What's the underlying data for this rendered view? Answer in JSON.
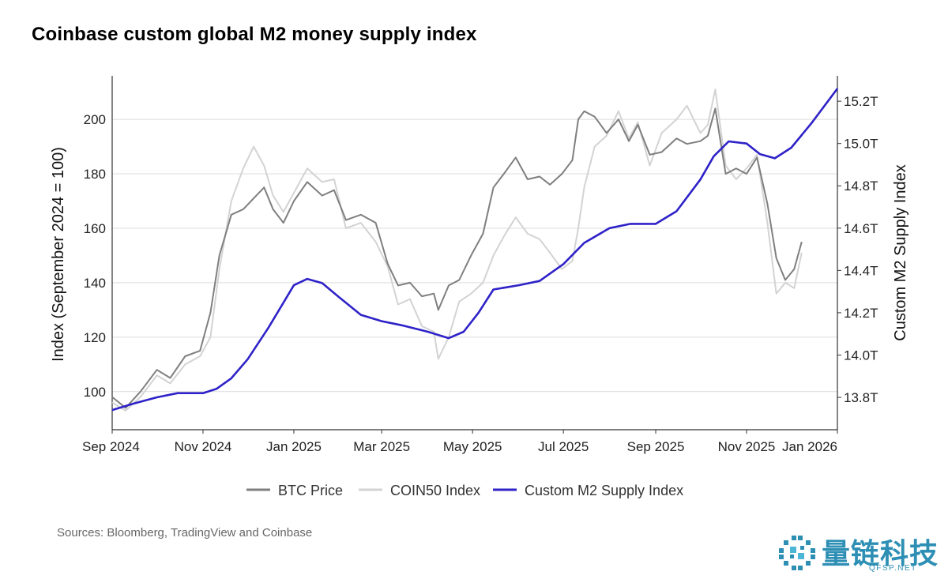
{
  "colors": {
    "btc": "#7f7f7f",
    "coin50": "#d3d3d3",
    "m2": "#2e22c8",
    "grid": "#dcdcdc",
    "axis": "#333333",
    "watermark": "#2e8fb5"
  },
  "source": "Sources: Bloomberg, TradingView and Coinbase",
  "watermark": {
    "name": "量链科技",
    "domain": "QFSP.NET",
    "icon": "pixel-circle-logo-icon"
  },
  "chart_data": {
    "type": "line",
    "title": "Coinbase custom global M2 money supply index",
    "ylabel": "Index (September 2024 = 100)",
    "y2label": "Custom M2 Supply Index",
    "x_ticks": [
      "Sep 2024",
      "Nov 2024",
      "Jan 2025",
      "Mar 2025",
      "May 2025",
      "Jul 2025",
      "Sep 2025",
      "Nov 2025",
      "Jan 2026"
    ],
    "x_tick_dates": [
      "2024-09-01",
      "2024-11-01",
      "2025-01-01",
      "2025-03-01",
      "2025-05-01",
      "2025-07-01",
      "2025-09-01",
      "2025-11-01",
      "2026-01-01"
    ],
    "xlim": [
      "2024-09-01",
      "2026-01-01"
    ],
    "ylim": [
      86,
      216
    ],
    "y_ticks": [
      100,
      120,
      140,
      160,
      180,
      200
    ],
    "y2lim": [
      13.647,
      15.32
    ],
    "y2_ticks": [
      13.8,
      14.0,
      14.2,
      14.4,
      14.6,
      14.8,
      15.0,
      15.2
    ],
    "y2_tick_labels": [
      "13.8T",
      "14.0T",
      "14.2T",
      "14.4T",
      "14.6T",
      "14.8T",
      "15.0T",
      "15.2T"
    ],
    "grid": true,
    "legend_position": "bottom-center",
    "series": [
      {
        "name": "BTC Price",
        "axis": "left",
        "x": [
          "2024-09-01",
          "2024-09-10",
          "2024-09-20",
          "2024-10-01",
          "2024-10-10",
          "2024-10-20",
          "2024-10-30",
          "2024-11-06",
          "2024-11-12",
          "2024-11-20",
          "2024-11-28",
          "2024-12-05",
          "2024-12-12",
          "2024-12-18",
          "2024-12-25",
          "2025-01-01",
          "2025-01-10",
          "2025-01-20",
          "2025-01-28",
          "2025-02-05",
          "2025-02-15",
          "2025-02-25",
          "2025-03-05",
          "2025-03-12",
          "2025-03-20",
          "2025-03-28",
          "2025-04-05",
          "2025-04-08",
          "2025-04-15",
          "2025-04-22",
          "2025-04-30",
          "2025-05-08",
          "2025-05-15",
          "2025-05-22",
          "2025-05-30",
          "2025-06-07",
          "2025-06-15",
          "2025-06-22",
          "2025-06-30",
          "2025-07-07",
          "2025-07-11",
          "2025-07-15",
          "2025-07-22",
          "2025-07-30",
          "2025-08-07",
          "2025-08-14",
          "2025-08-20",
          "2025-08-28",
          "2025-09-05",
          "2025-09-15",
          "2025-09-22",
          "2025-10-01",
          "2025-10-06",
          "2025-10-11",
          "2025-10-18",
          "2025-10-25",
          "2025-11-01",
          "2025-11-08",
          "2025-11-15",
          "2025-11-21",
          "2025-11-27",
          "2025-12-03",
          "2025-12-08"
        ],
        "y": [
          98,
          94,
          100,
          108,
          105,
          113,
          115,
          129,
          150,
          165,
          167,
          171,
          175,
          167,
          162,
          170,
          177,
          172,
          174,
          163,
          165,
          162,
          147,
          139,
          140,
          135,
          136,
          130,
          139,
          141,
          150,
          158,
          175,
          180,
          186,
          178,
          179,
          176,
          180,
          185,
          200,
          203,
          201,
          195,
          200,
          192,
          198,
          187,
          188,
          193,
          191,
          192,
          194,
          204,
          180,
          182,
          180,
          186,
          169,
          149,
          141,
          145,
          155
        ]
      },
      {
        "name": "COIN50 Index",
        "axis": "left",
        "x": [
          "2024-09-01",
          "2024-09-10",
          "2024-09-20",
          "2024-10-01",
          "2024-10-10",
          "2024-10-20",
          "2024-10-30",
          "2024-11-06",
          "2024-11-12",
          "2024-11-20",
          "2024-11-28",
          "2024-12-05",
          "2024-12-12",
          "2024-12-18",
          "2024-12-25",
          "2025-01-01",
          "2025-01-10",
          "2025-01-20",
          "2025-01-28",
          "2025-02-05",
          "2025-02-15",
          "2025-02-25",
          "2025-03-05",
          "2025-03-12",
          "2025-03-20",
          "2025-03-28",
          "2025-04-05",
          "2025-04-08",
          "2025-04-15",
          "2025-04-22",
          "2025-04-30",
          "2025-05-08",
          "2025-05-15",
          "2025-05-22",
          "2025-05-30",
          "2025-06-07",
          "2025-06-15",
          "2025-06-22",
          "2025-06-30",
          "2025-07-07",
          "2025-07-11",
          "2025-07-15",
          "2025-07-22",
          "2025-07-30",
          "2025-08-07",
          "2025-08-14",
          "2025-08-20",
          "2025-08-28",
          "2025-09-05",
          "2025-09-15",
          "2025-09-22",
          "2025-10-01",
          "2025-10-06",
          "2025-10-11",
          "2025-10-18",
          "2025-10-25",
          "2025-11-01",
          "2025-11-08",
          "2025-11-15",
          "2025-11-21",
          "2025-11-27",
          "2025-12-03",
          "2025-12-08"
        ],
        "y": [
          96,
          93,
          98,
          106,
          103,
          110,
          113,
          120,
          145,
          170,
          182,
          190,
          183,
          172,
          166,
          173,
          182,
          177,
          178,
          160,
          162,
          155,
          146,
          132,
          134,
          124,
          122,
          112,
          120,
          133,
          136,
          140,
          150,
          157,
          164,
          158,
          156,
          151,
          145,
          148,
          160,
          175,
          190,
          194,
          203,
          193,
          199,
          183,
          195,
          200,
          205,
          195,
          198,
          211,
          183,
          178,
          182,
          187,
          162,
          136,
          140,
          138,
          151
        ]
      },
      {
        "name": "Custom M2 Supply Index",
        "axis": "right",
        "x": [
          "2024-09-01",
          "2024-09-15",
          "2024-10-01",
          "2024-10-15",
          "2024-11-01",
          "2024-11-10",
          "2024-11-20",
          "2024-12-01",
          "2024-12-15",
          "2025-01-01",
          "2025-01-10",
          "2025-01-20",
          "2025-02-01",
          "2025-02-15",
          "2025-03-01",
          "2025-03-15",
          "2025-04-01",
          "2025-04-15",
          "2025-04-25",
          "2025-05-05",
          "2025-05-15",
          "2025-06-01",
          "2025-06-15",
          "2025-07-01",
          "2025-07-15",
          "2025-08-01",
          "2025-08-15",
          "2025-09-01",
          "2025-09-15",
          "2025-10-01",
          "2025-10-10",
          "2025-10-20",
          "2025-11-01",
          "2025-11-10",
          "2025-11-20",
          "2025-12-01",
          "2025-12-15",
          "2026-01-01"
        ],
        "y": [
          13.74,
          13.77,
          13.8,
          13.82,
          13.82,
          13.84,
          13.89,
          13.98,
          14.13,
          14.33,
          14.36,
          14.34,
          14.27,
          14.19,
          14.16,
          14.14,
          14.11,
          14.08,
          14.11,
          14.2,
          14.31,
          14.33,
          14.35,
          14.43,
          14.53,
          14.6,
          14.62,
          14.62,
          14.68,
          14.83,
          14.94,
          15.01,
          15.0,
          14.95,
          14.93,
          14.98,
          15.1,
          15.26
        ]
      }
    ]
  }
}
